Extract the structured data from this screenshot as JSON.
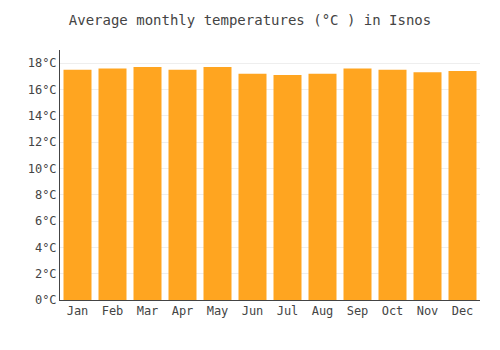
{
  "chart_data": {
    "type": "bar",
    "title": "Average monthly temperatures (°C ) in Isnos",
    "categories": [
      "Jan",
      "Feb",
      "Mar",
      "Apr",
      "May",
      "Jun",
      "Jul",
      "Aug",
      "Sep",
      "Oct",
      "Nov",
      "Dec"
    ],
    "values": [
      17.5,
      17.6,
      17.7,
      17.5,
      17.7,
      17.2,
      17.1,
      17.2,
      17.6,
      17.5,
      17.3,
      17.4
    ],
    "color": "#FFA520",
    "ylim": [
      0,
      19
    ],
    "yticks": [
      {
        "value": 0,
        "label": "0°C"
      },
      {
        "value": 2,
        "label": "2°C"
      },
      {
        "value": 4,
        "label": "4°C"
      },
      {
        "value": 6,
        "label": "6°C"
      },
      {
        "value": 8,
        "label": "8°C"
      },
      {
        "value": 10,
        "label": "10°C"
      },
      {
        "value": 12,
        "label": "12°C"
      },
      {
        "value": 14,
        "label": "14°C"
      },
      {
        "value": 16,
        "label": "16°C"
      },
      {
        "value": 18,
        "label": "18°C"
      }
    ],
    "grid": true
  }
}
